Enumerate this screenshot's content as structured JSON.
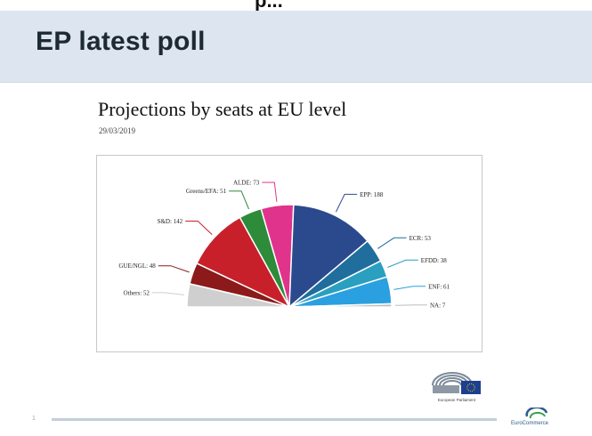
{
  "header": {
    "top_fragment": "p...\"",
    "title": "EP latest poll"
  },
  "slide": {
    "title": "Projections by seats at EU level",
    "date": "29/03/2019"
  },
  "chart_data": {
    "type": "pie",
    "subtype": "parliament-half-donut",
    "categories": [
      "Others",
      "GUE/NGL",
      "S&D",
      "Greens/EFA",
      "ALDE",
      "EPP",
      "ECR",
      "EFDD",
      "ENF",
      "NA"
    ],
    "values": [
      52,
      48,
      142,
      51,
      73,
      188,
      53,
      38,
      61,
      7
    ],
    "labels": [
      "Others: 52",
      "GUE/NGL: 48",
      "S&D: 142",
      "Greens/EFA: 51",
      "ALDE: 73",
      "EPP: 188",
      "ECR: 53",
      "EFDD: 38",
      "ENF: 61",
      "NA: 7"
    ],
    "colors": [
      "#cfcfcf",
      "#8c1a1a",
      "#c8202a",
      "#2e8b3a",
      "#e0338c",
      "#2b4a8e",
      "#1f6e9e",
      "#2a9fc0",
      "#2aa0e0",
      "#bdbdbd"
    ]
  },
  "logos": {
    "ep_caption": "European Parliament",
    "eurocommerce": "EuroCommerce"
  },
  "footer": {
    "page": "1"
  }
}
